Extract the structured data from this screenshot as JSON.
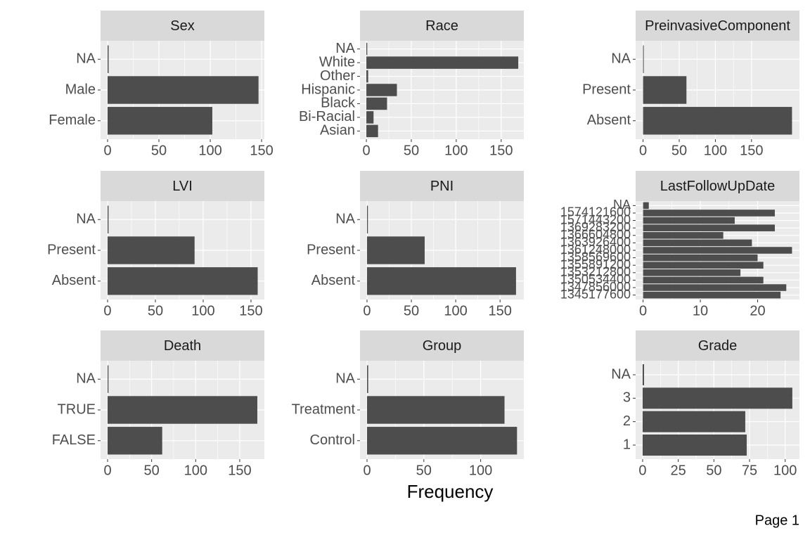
{
  "chart_data": [
    {
      "type": "bar",
      "horizontal": true,
      "title": "Sex",
      "categories": [
        "Female",
        "Male",
        "NA"
      ],
      "values": [
        102,
        147,
        1
      ],
      "color": "#4d4d4d",
      "xlim": [
        -6.85,
        152.7
      ],
      "xticks": [
        0,
        50,
        100,
        150
      ],
      "grid": true
    },
    {
      "type": "bar",
      "horizontal": true,
      "title": "Race",
      "categories": [
        "Asian",
        "Bi-Racial",
        "Black",
        "Hispanic",
        "Other",
        "White",
        "NA"
      ],
      "values": [
        13,
        8,
        23,
        34,
        2,
        169,
        1
      ],
      "color": "#4d4d4d",
      "xlim": [
        -7.07,
        175.2
      ],
      "xticks": [
        0,
        50,
        100,
        150
      ],
      "grid": true
    },
    {
      "type": "bar",
      "horizontal": true,
      "title": "PreinvasiveComponent",
      "categories": [
        "Absent",
        "Present",
        "NA"
      ],
      "values": [
        206,
        60,
        1
      ],
      "color": "#4d4d4d",
      "xlim": [
        -10.3,
        216.3
      ],
      "xticks": [
        0,
        50,
        100,
        150
      ],
      "grid": true
    },
    {
      "type": "bar",
      "horizontal": true,
      "title": "LVI",
      "categories": [
        "Absent",
        "Present",
        "NA"
      ],
      "values": [
        157,
        91,
        1
      ],
      "color": "#4d4d4d",
      "xlim": [
        -7.35,
        164
      ],
      "xticks": [
        0,
        50,
        100,
        150
      ],
      "grid": true
    },
    {
      "type": "bar",
      "horizontal": true,
      "title": "PNI",
      "categories": [
        "Absent",
        "Present",
        "NA"
      ],
      "values": [
        168,
        65,
        1
      ],
      "color": "#4d4d4d",
      "xlim": [
        -7.9,
        176.8
      ],
      "xticks": [
        0,
        50,
        100,
        150
      ],
      "grid": true
    },
    {
      "type": "bar",
      "horizontal": true,
      "title": "LastFollowUpDate",
      "categories": [
        "1345177600",
        "1347856000",
        "1350534400",
        "1353212800",
        "1355891200",
        "1358569600",
        "1361248000",
        "1363926400",
        "1366604800",
        "1369283200",
        "1571443200",
        "1574121600",
        "NA"
      ],
      "values": [
        24,
        25,
        21,
        17,
        21,
        20,
        26,
        19,
        14,
        23,
        16,
        23,
        1
      ],
      "color": "#4d4d4d",
      "xlim": [
        -1.3,
        27.3
      ],
      "xticks": [
        0,
        10,
        20
      ],
      "grid": true
    },
    {
      "type": "bar",
      "horizontal": true,
      "title": "Death",
      "categories": [
        "FALSE",
        "TRUE",
        "NA"
      ],
      "values": [
        62,
        170,
        1
      ],
      "color": "#4d4d4d",
      "xlim": [
        -8,
        178
      ],
      "xticks": [
        0,
        50,
        100,
        150
      ],
      "grid": true
    },
    {
      "type": "bar",
      "horizontal": true,
      "title": "Group",
      "categories": [
        "Control",
        "Treatment",
        "NA"
      ],
      "values": [
        132,
        121,
        1
      ],
      "color": "#4d4d4d",
      "xlim": [
        -6.2,
        138
      ],
      "xticks": [
        0,
        50,
        100
      ],
      "grid": true
    },
    {
      "type": "bar",
      "horizontal": true,
      "title": "Grade",
      "categories": [
        "1",
        "2",
        "3",
        "NA"
      ],
      "values": [
        73,
        72,
        105,
        1
      ],
      "color": "#4d4d4d",
      "xlim": [
        -4.9,
        110
      ],
      "xticks": [
        0,
        25,
        50,
        75,
        100
      ],
      "grid": true
    }
  ],
  "xlabel": "Frequency",
  "page": "Page 1"
}
